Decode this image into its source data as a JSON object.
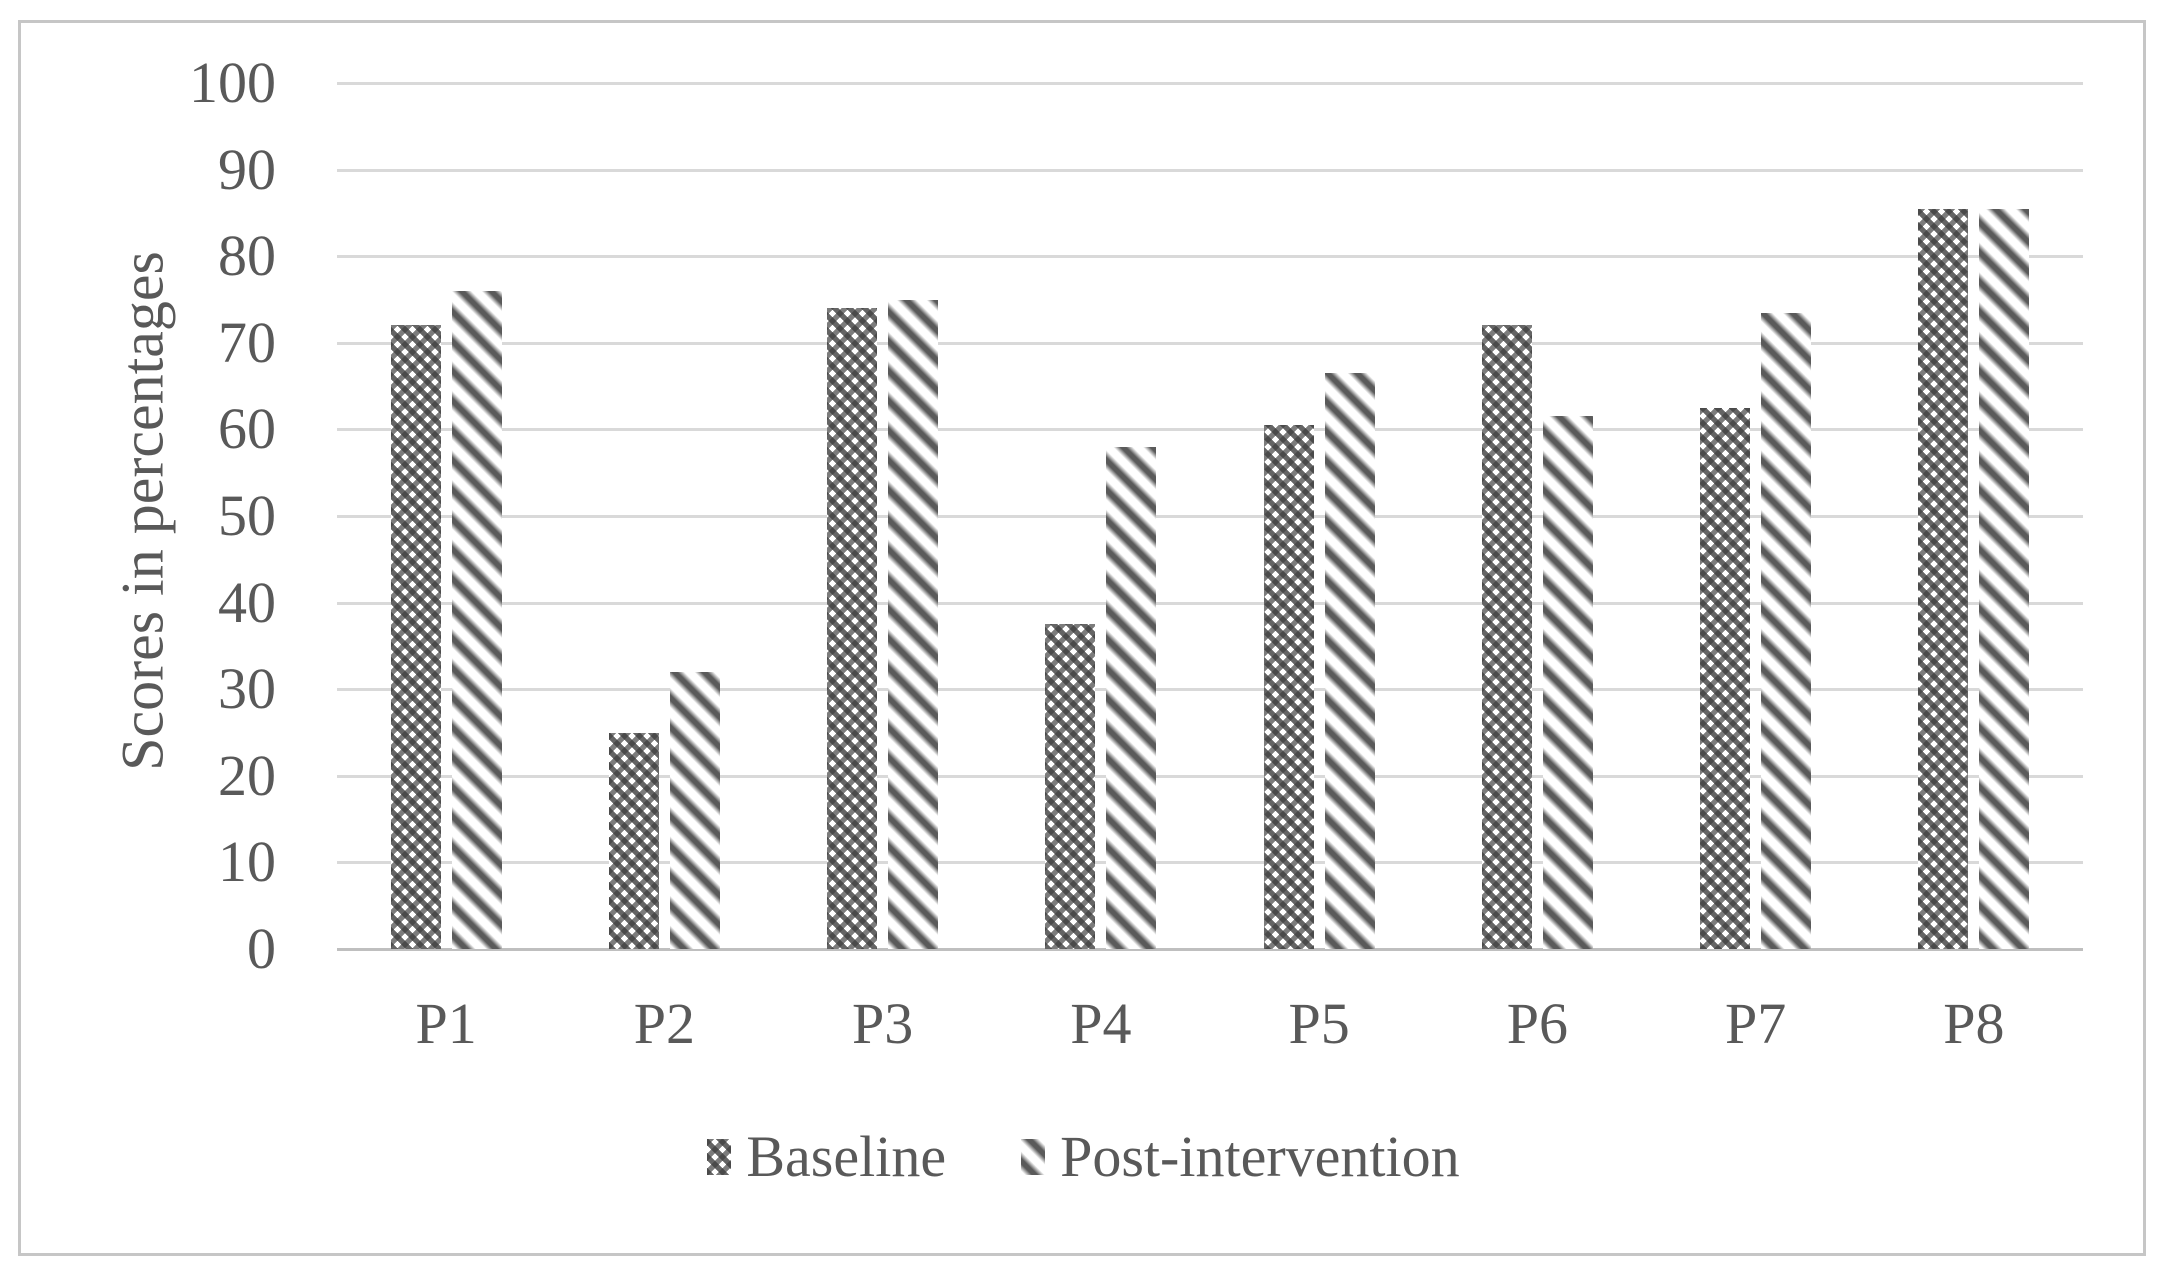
{
  "figure": {
    "background": "#ffffff",
    "frame_color": "#c6c6c6"
  },
  "colors": {
    "text": "#595959",
    "gridline": "#d9d9d9",
    "axis_line": "#bfbfbf",
    "pattern_ink": "#5a5a5a"
  },
  "chart_data": {
    "type": "bar",
    "title": "",
    "xlabel": "",
    "ylabel": "Scores in percentages",
    "categories": [
      "P1",
      "P2",
      "P3",
      "P4",
      "P5",
      "P6",
      "P7",
      "P8"
    ],
    "series": [
      {
        "name": "Baseline",
        "pattern": "checker",
        "values": [
          72,
          25,
          74,
          37.5,
          60.5,
          72,
          62.5,
          85.5
        ]
      },
      {
        "name": "Post-intervention",
        "pattern": "diagonal-stripes",
        "values": [
          76,
          32,
          75,
          58,
          66.5,
          61.5,
          73.5,
          85.5
        ]
      }
    ],
    "ylim": [
      0,
      100
    ],
    "yticks": [
      0,
      10,
      20,
      30,
      40,
      50,
      60,
      70,
      80,
      90,
      100
    ],
    "grid": "horizontal",
    "legend_position": "bottom"
  }
}
